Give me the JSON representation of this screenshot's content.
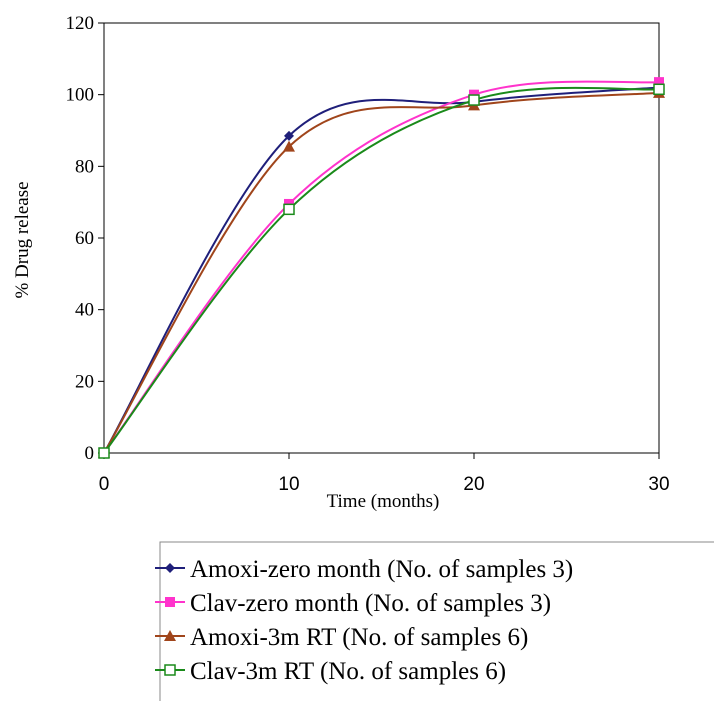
{
  "chart_data": {
    "type": "line",
    "title": "",
    "xlabel": "Time (months)",
    "ylabel": "% Drug  release",
    "x": [
      0,
      10,
      20,
      30
    ],
    "xlim": [
      0,
      30
    ],
    "ylim": [
      0,
      120
    ],
    "xticks": [
      "0",
      "10",
      "20",
      "30"
    ],
    "yticks": [
      "0",
      "20",
      "40",
      "60",
      "80",
      "100",
      "120"
    ],
    "grid": false,
    "legend_position": "bottom",
    "series": [
      {
        "name": "Amoxi-zero month (No. of samples 3)",
        "values": [
          0,
          88.5,
          98,
          102
        ],
        "color": "#1f1f7a",
        "marker": "diamond"
      },
      {
        "name": "Clav-zero month (No. of samples 3)",
        "values": [
          0,
          69.5,
          100,
          103.5
        ],
        "color": "#ff33cc",
        "marker": "square"
      },
      {
        "name": "Amoxi-3m RT (No. of samples 6)",
        "values": [
          0,
          85.5,
          97,
          100.5
        ],
        "color": "#a0451b",
        "marker": "triangle"
      },
      {
        "name": "Clav-3m RT (No. of samples 6)",
        "values": [
          0,
          68,
          98.5,
          101.5
        ],
        "color": "#1a8a1a",
        "marker": "open-square"
      }
    ]
  }
}
